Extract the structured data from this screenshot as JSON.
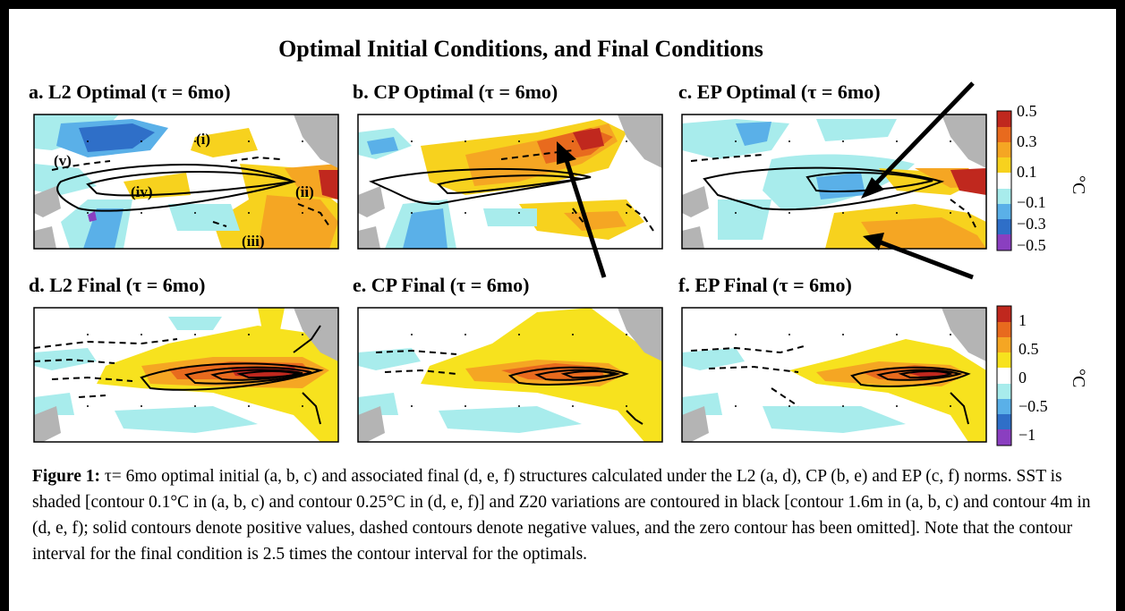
{
  "figure_title": "Optimal Initial Conditions, and Final Conditions",
  "panels": [
    {
      "id": "a",
      "title": "a. L2 Optimal (τ = 6mo)"
    },
    {
      "id": "b",
      "title": "b. CP Optimal (τ = 6mo)"
    },
    {
      "id": "c",
      "title": "c. EP Optimal (τ = 6mo)"
    },
    {
      "id": "d",
      "title": "d. L2 Final (τ = 6mo)"
    },
    {
      "id": "e",
      "title": "e. CP Final (τ = 6mo)"
    },
    {
      "id": "f",
      "title": "f. EP Final (τ = 6mo)"
    }
  ],
  "annotations": {
    "i": "(i)",
    "ii": "(ii)",
    "iii": "(iii)",
    "iv": "(iv)",
    "v": "(v)"
  },
  "colorbar_top": {
    "ticks": [
      "0.5",
      "0.3",
      "0.1",
      "−0.1",
      "−0.3",
      "−0.5"
    ],
    "unit": "°C",
    "colors": [
      "#c0281e",
      "#e86a1e",
      "#f5a623",
      "#f7d21e",
      "#ffffff",
      "#a8ecec",
      "#5ab0e8",
      "#2f6fc8",
      "#8a3fc0"
    ]
  },
  "colorbar_bottom": {
    "ticks": [
      "1",
      "0.5",
      "0",
      "−0.5",
      "−1"
    ],
    "unit": "°C",
    "colors": [
      "#c0281e",
      "#e86a1e",
      "#f5a623",
      "#f7e21e",
      "#ffffff",
      "#a8ecec",
      "#5ab0e8",
      "#2f6fc8",
      "#8a3fc0"
    ]
  },
  "caption": {
    "label": "Figure 1:",
    "text": " τ= 6mo optimal initial (a, b, c) and associated final (d, e, f) structures calculated under the L2 (a, d), CP (b, e) and EP (c, f) norms. SST is shaded [contour 0.1°C in (a, b, c) and contour 0.25°C in (d, e, f)] and Z20 variations are contoured in black [contour 1.6m in (a, b, c) and contour 4m in (d, e, f); solid contours denote positive values, dashed contours denote negative values, and the zero contour has been omitted]. Note that the contour interval for the final condition is 2.5 times the contour interval for the optimals."
  }
}
